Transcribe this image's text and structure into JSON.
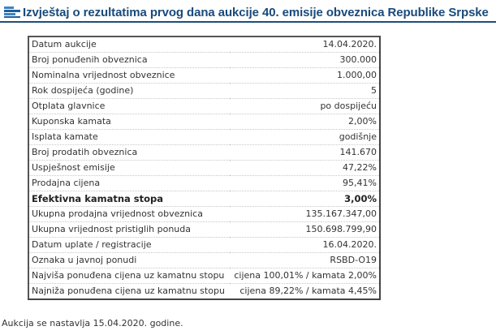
{
  "header": {
    "icon": "list-bars-icon",
    "title": "Izvještaj o rezultatima prvog dana aukcije 40. emisije obveznica Republike Srpske"
  },
  "report": {
    "rows": [
      {
        "label": "Datum aukcije",
        "value": "14.04.2020.",
        "bold": false
      },
      {
        "label": "Broj ponuđenih obveznica",
        "value": "300.000",
        "bold": false
      },
      {
        "label": "Nominalna vrijednost obveznice",
        "value": "1.000,00",
        "bold": false
      },
      {
        "label": "Rok dospijeća (godine)",
        "value": "5",
        "bold": false
      },
      {
        "label": "Otplata glavnice",
        "value": "po dospijeću",
        "bold": false
      },
      {
        "label": "Kuponska kamata",
        "value": "2,00%",
        "bold": false
      },
      {
        "label": "Isplata kamate",
        "value": "godišnje",
        "bold": false
      },
      {
        "label": "Broj prodatih obveznica",
        "value": "141.670",
        "bold": false
      },
      {
        "label": "Uspješnost emisije",
        "value": "47,22%",
        "bold": false
      },
      {
        "label": "Prodajna cijena",
        "value": "95,41%",
        "bold": false
      },
      {
        "label": "Efektivna kamatna stopa",
        "value": "3,00%",
        "bold": true
      },
      {
        "label": "Ukupna prodajna vrijednost obveznica",
        "value": "135.167.347,00",
        "bold": false
      },
      {
        "label": "Ukupna vrijednost pristiglih ponuda",
        "value": "150.698.799,90",
        "bold": false
      },
      {
        "label": "Datum uplate / registracije",
        "value": "16.04.2020.",
        "bold": false
      },
      {
        "label": "Oznaka u javnoj ponudi",
        "value": "RSBD-O19",
        "bold": false
      },
      {
        "label": "Najviša ponuđena cijena uz kamatnu stopu",
        "value": "cijena 100,01% / kamata 2,00%",
        "bold": false
      },
      {
        "label": "Najniža ponuđena cijena uz kamatnu stopu",
        "value": "cijena 89,22% / kamata 4,45%",
        "bold": false
      }
    ]
  },
  "footer": {
    "note": "Aukcija se nastavlja 15.04.2020. godine."
  },
  "colors": {
    "title": "#1a4a7a",
    "underline": "#1f4e79",
    "border": "#444444",
    "row_separator": "#c8c8c8",
    "text": "#333333"
  }
}
